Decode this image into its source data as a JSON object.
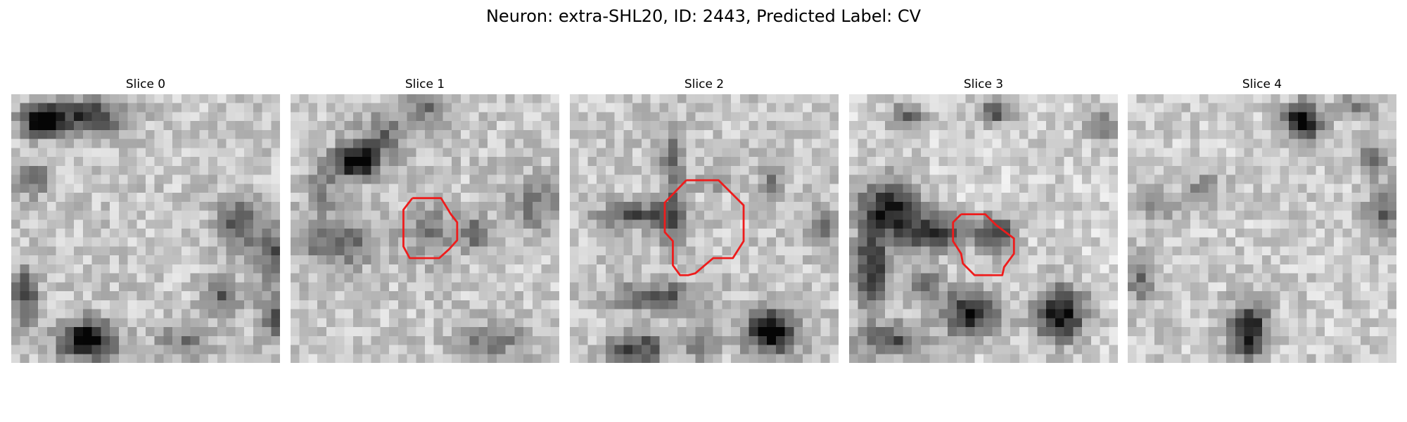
{
  "figure": {
    "title": "Neuron: extra-SHL20, ID: 2443, Predicted Label: CV"
  },
  "panels": [
    {
      "title": "Slice 0",
      "has_contour": false
    },
    {
      "title": "Slice 1",
      "has_contour": true
    },
    {
      "title": "Slice 2",
      "has_contour": true
    },
    {
      "title": "Slice 3",
      "has_contour": true
    },
    {
      "title": "Slice 4",
      "has_contour": false
    }
  ],
  "colors": {
    "contour": "#ee1c1c",
    "background": "#ffffff",
    "colormap": "grayscale"
  }
}
